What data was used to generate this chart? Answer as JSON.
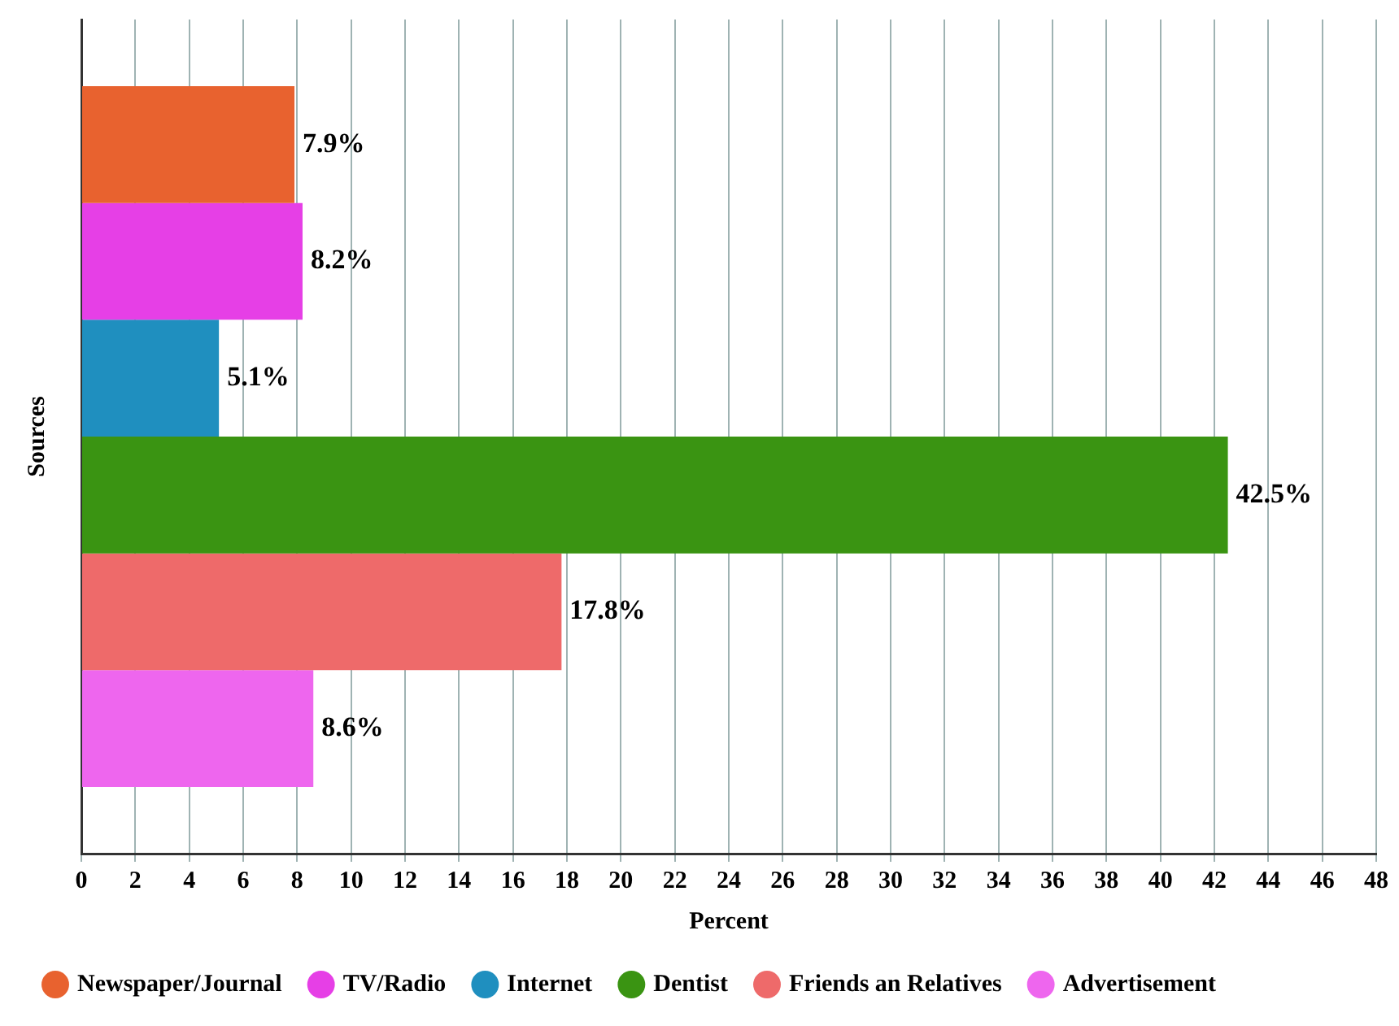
{
  "chart_data": {
    "type": "bar",
    "orientation": "horizontal",
    "xlabel": "Percent",
    "ylabel": "Sources",
    "categories": [
      null
    ],
    "series": [
      {
        "name": "Newspaper/Journal",
        "color": "#e8622f",
        "values": [
          7.9
        ],
        "value_labels": [
          "7.9%"
        ]
      },
      {
        "name": "TV/Radio",
        "color": "#e63fe6",
        "values": [
          8.2
        ],
        "value_labels": [
          "8.2%"
        ]
      },
      {
        "name": "Internet",
        "color": "#1f8fbf",
        "values": [
          5.1
        ],
        "value_labels": [
          "5.1%"
        ]
      },
      {
        "name": "Dentist",
        "color": "#3a9412",
        "values": [
          42.5
        ],
        "value_labels": [
          "42.5%"
        ]
      },
      {
        "name": "Friends an Relatives",
        "color": "#ee6a6a",
        "values": [
          17.8
        ],
        "value_labels": [
          "17.8%"
        ]
      },
      {
        "name": "Advertisement",
        "color": "#ee66ee",
        "values": [
          8.6
        ],
        "value_labels": [
          "8.6%"
        ]
      }
    ],
    "xlim": [
      0,
      48
    ],
    "xticks": [
      0,
      2,
      4,
      6,
      8,
      10,
      12,
      14,
      16,
      18,
      20,
      22,
      24,
      26,
      28,
      30,
      32,
      34,
      36,
      38,
      40,
      42,
      44,
      46,
      48
    ],
    "grid": "x",
    "legend": "bottom left"
  }
}
